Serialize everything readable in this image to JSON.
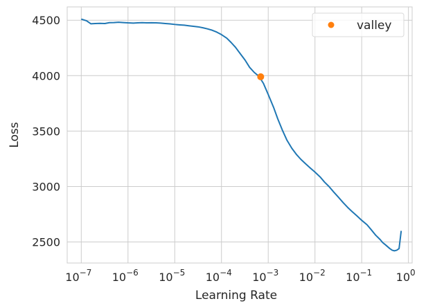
{
  "chart_data": {
    "type": "line",
    "xscale": "log",
    "xlabel": "Learning Rate",
    "ylabel": "Loss",
    "xlim": [
      5e-08,
      1.2
    ],
    "ylim": [
      2310,
      4620
    ],
    "grid": true,
    "legend_placement": "top-right",
    "x_ticks": [
      {
        "value": 1e-07,
        "base": "10",
        "exp": "−7"
      },
      {
        "value": 1e-06,
        "base": "10",
        "exp": "−6"
      },
      {
        "value": 1e-05,
        "base": "10",
        "exp": "−5"
      },
      {
        "value": 0.0001,
        "base": "10",
        "exp": "−4"
      },
      {
        "value": 0.001,
        "base": "10",
        "exp": "−3"
      },
      {
        "value": 0.01,
        "base": "10",
        "exp": "−2"
      },
      {
        "value": 0.1,
        "base": "10",
        "exp": "−1"
      },
      {
        "value": 1,
        "base": "10",
        "exp": "0"
      }
    ],
    "y_ticks": [
      {
        "value": 2500,
        "label": "2500"
      },
      {
        "value": 3000,
        "label": "3000"
      },
      {
        "value": 3500,
        "label": "3500"
      },
      {
        "value": 4000,
        "label": "4000"
      },
      {
        "value": 4500,
        "label": "4500"
      }
    ],
    "series": [
      {
        "color": "#1f77b4",
        "points": [
          [
            1e-07,
            4510
          ],
          [
            1.3e-07,
            4495
          ],
          [
            1.6e-07,
            4468
          ],
          [
            2e-07,
            4470
          ],
          [
            2.5e-07,
            4472
          ],
          [
            3.2e-07,
            4470
          ],
          [
            4e-07,
            4478
          ],
          [
            5e-07,
            4479
          ],
          [
            6.3e-07,
            4482
          ],
          [
            7.9e-07,
            4479
          ],
          [
            1e-06,
            4476
          ],
          [
            1.3e-06,
            4474
          ],
          [
            1.6e-06,
            4476
          ],
          [
            2e-06,
            4478
          ],
          [
            2.5e-06,
            4476
          ],
          [
            3.2e-06,
            4477
          ],
          [
            4e-06,
            4476
          ],
          [
            5e-06,
            4474
          ],
          [
            6.3e-06,
            4470
          ],
          [
            7.9e-06,
            4467
          ],
          [
            1e-05,
            4462
          ],
          [
            1.3e-05,
            4458
          ],
          [
            1.6e-05,
            4455
          ],
          [
            2e-05,
            4450
          ],
          [
            2.5e-05,
            4445
          ],
          [
            3.2e-05,
            4440
          ],
          [
            4e-05,
            4432
          ],
          [
            5e-05,
            4422
          ],
          [
            6.3e-05,
            4410
          ],
          [
            7.9e-05,
            4393
          ],
          [
            0.0001,
            4370
          ],
          [
            0.00013,
            4338
          ],
          [
            0.00016,
            4300
          ],
          [
            0.0002,
            4255
          ],
          [
            0.00025,
            4200
          ],
          [
            0.00032,
            4140
          ],
          [
            0.0004,
            4075
          ],
          [
            0.0005,
            4030
          ],
          [
            0.00063,
            3995
          ],
          [
            0.00079,
            3930
          ],
          [
            0.001,
            3830
          ],
          [
            0.0013,
            3715
          ],
          [
            0.0016,
            3610
          ],
          [
            0.002,
            3510
          ],
          [
            0.0025,
            3420
          ],
          [
            0.0032,
            3345
          ],
          [
            0.004,
            3290
          ],
          [
            0.005,
            3245
          ],
          [
            0.0063,
            3205
          ],
          [
            0.0079,
            3168
          ],
          [
            0.01,
            3130
          ],
          [
            0.013,
            3085
          ],
          [
            0.016,
            3040
          ],
          [
            0.02,
            3000
          ],
          [
            0.025,
            2952
          ],
          [
            0.032,
            2902
          ],
          [
            0.04,
            2855
          ],
          [
            0.05,
            2812
          ],
          [
            0.063,
            2772
          ],
          [
            0.079,
            2735
          ],
          [
            0.1,
            2695
          ],
          [
            0.13,
            2655
          ],
          [
            0.16,
            2610
          ],
          [
            0.2,
            2560
          ],
          [
            0.25,
            2520
          ],
          [
            0.28,
            2495
          ],
          [
            0.32,
            2475
          ],
          [
            0.4,
            2440
          ],
          [
            0.45,
            2425
          ],
          [
            0.5,
            2420
          ],
          [
            0.56,
            2425
          ],
          [
            0.63,
            2440
          ],
          [
            0.7,
            2600
          ]
        ]
      }
    ],
    "markers": [
      {
        "name": "valley",
        "x": 0.00069,
        "y": 3990,
        "color": "#ff7f0e"
      }
    ]
  }
}
